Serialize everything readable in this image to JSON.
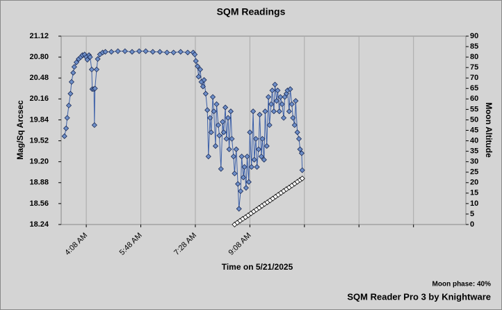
{
  "chart_data": {
    "type": "line",
    "title": "SQM Readings",
    "xlabel": "Time on 5/21/2025",
    "ylabel": "Mag/Sq Arcsec",
    "y2label": "Moon Altitude",
    "annotations": [
      "Moon phase: 40%",
      "SQM Reader Pro 3 by Knightware"
    ],
    "grid": true,
    "xlim": [
      "3:22 AM",
      "3:44 PM"
    ],
    "xticks": [
      {
        "value": "4:08 AM",
        "label": "4:08 AM"
      },
      {
        "value": "5:48 AM",
        "label": "5:48 AM"
      },
      {
        "value": "7:28 AM",
        "label": "7:28 AM"
      },
      {
        "value": "9:08 AM",
        "label": "9:08 AM"
      },
      {
        "value": "10:48 AM",
        "label": null
      },
      {
        "value": "12:28 PM",
        "label": null
      },
      {
        "value": "2:08 PM",
        "label": null
      }
    ],
    "ylim": [
      18.24,
      21.12
    ],
    "yticks": [
      18.24,
      18.56,
      18.88,
      {
        "value": 19.2,
        "label": "19.20"
      },
      19.52,
      19.84,
      20.16,
      20.48,
      {
        "value": 20.8,
        "label": "20.80"
      },
      21.12
    ],
    "y2lim": [
      0,
      90
    ],
    "y2ticks": [
      0,
      5,
      10,
      15,
      20,
      25,
      30,
      35,
      40,
      45,
      50,
      55,
      60,
      65,
      70,
      75,
      80,
      85,
      90
    ],
    "series": [
      {
        "color": "#6e8fc9",
        "line_color": "#3b5fa8",
        "axis": "y",
        "x": [
          "3:28 AM",
          "3:31 AM",
          "3:33 AM",
          "3:36 AM",
          "3:39 AM",
          "3:41 AM",
          "3:44 AM",
          "3:46 AM",
          "3:50 AM",
          "3:54 AM",
          "3:58 AM",
          "4:01 AM",
          "4:05 AM",
          "4:08 AM",
          "4:10 AM",
          "4:13 AM",
          "4:15 AM",
          "4:18 AM",
          "4:19 AM",
          "4:22 AM",
          "4:23 AM",
          "4:24 AM",
          "4:27 AM",
          "4:29 AM",
          "4:33 AM",
          "4:38 AM",
          "4:43 AM",
          "4:54 AM",
          "5:06 AM",
          "5:19 AM",
          "5:32 AM",
          "5:45 AM",
          "5:57 AM",
          "6:10 AM",
          "6:23 AM",
          "6:36 AM",
          "6:48 AM",
          "7:01 AM",
          "7:14 AM",
          "7:24 AM",
          "7:27 AM",
          "7:29 AM",
          "7:32 AM",
          "7:34 AM",
          "7:37 AM",
          "7:39 AM",
          "7:42 AM",
          "7:44 AM",
          "7:47 AM",
          "7:50 AM",
          "7:52 AM",
          "7:55 AM",
          "7:57 AM",
          "8:00 AM",
          "8:02 AM",
          "8:05 AM",
          "8:07 AM",
          "8:10 AM",
          "8:12 AM",
          "8:15 AM",
          "8:18 AM",
          "8:20 AM",
          "8:23 AM",
          "8:25 AM",
          "8:28 AM",
          "8:30 AM",
          "8:33 AM",
          "8:35 AM",
          "8:38 AM",
          "8:40 AM",
          "8:43 AM",
          "8:46 AM",
          "8:48 AM",
          "8:51 AM",
          "8:53 AM",
          "8:56 AM",
          "8:58 AM",
          "9:01 AM",
          "9:03 AM",
          "9:06 AM",
          "9:08 AM",
          "9:11 AM",
          "9:14 AM",
          "9:16 AM",
          "9:19 AM",
          "9:21 AM",
          "9:24 AM",
          "9:26 AM",
          "9:29 AM",
          "9:31 AM",
          "9:34 AM",
          "9:36 AM",
          "9:39 AM",
          "9:42 AM",
          "9:44 AM",
          "9:47 AM",
          "9:49 AM",
          "9:52 AM",
          "9:54 AM",
          "9:57 AM",
          "9:59 AM",
          "10:02 AM",
          "10:04 AM",
          "10:07 AM",
          "10:10 AM",
          "10:12 AM",
          "10:15 AM",
          "10:17 AM",
          "10:20 AM",
          "10:22 AM",
          "10:25 AM",
          "10:27 AM",
          "10:30 AM",
          "10:32 AM",
          "10:35 AM",
          "10:38 AM",
          "10:40 AM",
          "10:43 AM",
          "10:44 AM"
        ],
        "values": [
          19.59,
          19.71,
          19.87,
          20.06,
          20.24,
          20.42,
          20.56,
          20.65,
          20.72,
          20.77,
          20.8,
          20.83,
          20.84,
          20.8,
          20.76,
          20.83,
          20.8,
          20.61,
          20.31,
          20.31,
          19.76,
          20.32,
          20.61,
          20.77,
          20.84,
          20.87,
          20.88,
          20.88,
          20.89,
          20.89,
          20.88,
          20.89,
          20.89,
          20.88,
          20.88,
          20.87,
          20.87,
          20.88,
          20.87,
          20.87,
          20.84,
          20.74,
          20.66,
          20.5,
          20.61,
          20.42,
          20.35,
          20.45,
          20.24,
          19.99,
          19.28,
          19.87,
          19.65,
          20.19,
          19.97,
          19.44,
          20.08,
          19.76,
          19.6,
          19.09,
          19.81,
          19.65,
          20.03,
          19.55,
          19.87,
          19.39,
          19.97,
          19.55,
          19.28,
          19.02,
          19.39,
          18.86,
          18.48,
          18.75,
          19.28,
          18.96,
          19.12,
          18.8,
          19.28,
          18.89,
          19.65,
          19.12,
          19.97,
          19.23,
          19.55,
          19.12,
          19.39,
          19.92,
          19.28,
          19.55,
          19.23,
          19.97,
          19.44,
          20.19,
          19.76,
          20.08,
          20.29,
          19.97,
          20.38,
          20.13,
          20.29,
          19.97,
          20.19,
          20.08,
          19.87,
          20.19,
          20.24,
          20.29,
          19.97,
          20.31,
          20.08,
          19.87,
          19.76,
          20.13,
          19.65,
          19.55,
          19.39,
          19.33,
          19.07
        ]
      },
      {
        "color": "#ffffff",
        "line_color": "#000000",
        "axis": "y2",
        "x": [
          "8:40 AM",
          "8:45 AM",
          "8:50 AM",
          "8:55 AM",
          "9:00 AM",
          "9:05 AM",
          "9:10 AM",
          "9:15 AM",
          "9:20 AM",
          "9:25 AM",
          "9:30 AM",
          "9:35 AM",
          "9:40 AM",
          "9:45 AM",
          "9:50 AM",
          "9:55 AM",
          "10:00 AM",
          "10:05 AM",
          "10:10 AM",
          "10:15 AM",
          "10:20 AM",
          "10:25 AM",
          "10:30 AM",
          "10:35 AM",
          "10:40 AM",
          "10:44 AM"
        ],
        "values": [
          0,
          0.9,
          1.8,
          2.7,
          3.5,
          4.4,
          5.3,
          6.2,
          7.1,
          8,
          8.9,
          9.8,
          10.6,
          11.5,
          12.4,
          13.3,
          14.2,
          15.1,
          16,
          16.9,
          17.7,
          18.6,
          19.5,
          20.4,
          21.3,
          22
        ]
      }
    ]
  }
}
